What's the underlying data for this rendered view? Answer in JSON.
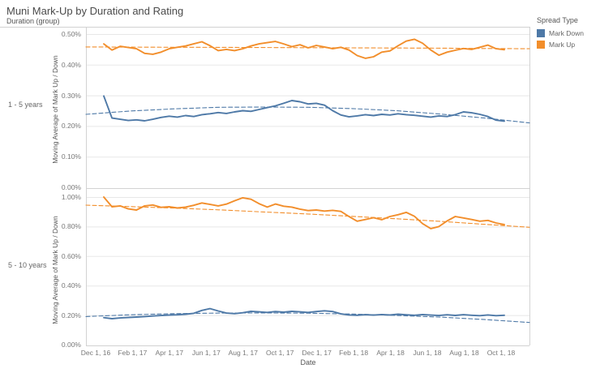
{
  "title": "Muni Mark-Up by Duration and Rating",
  "row_header": "Duration (group)",
  "legend": {
    "title": "Spread Type",
    "items": [
      {
        "label": "Mark Down",
        "color": "#4e79a7"
      },
      {
        "label": "Mark Up",
        "color": "#f28e2b"
      }
    ]
  },
  "colors": {
    "mark_down": "#4e79a7",
    "mark_up": "#f28e2b",
    "grid": "#e8e8e8",
    "border": "#d2d2d2",
    "title_text": "#4a4a4a",
    "tick_text": "#787878"
  },
  "x_axis": {
    "title": "Date",
    "ticks": [
      "Dec 1, 16",
      "Feb 1, 17",
      "Apr 1, 17",
      "Jun 1, 17",
      "Aug 1, 17",
      "Oct 1, 17",
      "Dec 1, 17",
      "Feb 1, 18",
      "Apr 1, 18",
      "Jun 1, 18",
      "Aug 1, 18",
      "Oct 1, 18"
    ]
  },
  "chart_data": [
    {
      "type": "line",
      "row_label": "1 - 5 years",
      "ylabel": "Moving Average of Mark Up / Down",
      "ylim": [
        0,
        0.5
      ],
      "y_ticks": [
        "0.50%",
        "0.40%",
        "0.30%",
        "0.20%",
        "0.10%",
        "0.00%"
      ],
      "x_range": [
        "Dec 1, 16",
        "Oct 1, 18"
      ],
      "grid": true,
      "legend_position": "right",
      "units": "percent",
      "series": [
        {
          "name": "Mark Up",
          "color": "#f28e2b",
          "values": [
            0.468,
            0.448,
            0.46,
            0.456,
            0.452,
            0.437,
            0.434,
            0.441,
            0.452,
            0.457,
            0.461,
            0.468,
            0.475,
            0.462,
            0.446,
            0.45,
            0.446,
            0.452,
            0.461,
            0.468,
            0.472,
            0.476,
            0.468,
            0.459,
            0.465,
            0.455,
            0.463,
            0.458,
            0.452,
            0.457,
            0.448,
            0.43,
            0.421,
            0.426,
            0.441,
            0.445,
            0.462,
            0.477,
            0.483,
            0.47,
            0.448,
            0.431,
            0.441,
            0.447,
            0.453,
            0.45,
            0.457,
            0.464,
            0.452,
            0.449
          ]
        },
        {
          "name": "Mark Down",
          "color": "#4e79a7",
          "values": [
            0.298,
            0.226,
            0.222,
            0.218,
            0.22,
            0.217,
            0.222,
            0.228,
            0.232,
            0.229,
            0.234,
            0.231,
            0.237,
            0.24,
            0.244,
            0.241,
            0.246,
            0.25,
            0.248,
            0.254,
            0.26,
            0.266,
            0.274,
            0.283,
            0.279,
            0.272,
            0.274,
            0.268,
            0.25,
            0.236,
            0.23,
            0.233,
            0.237,
            0.234,
            0.238,
            0.236,
            0.24,
            0.237,
            0.235,
            0.232,
            0.229,
            0.233,
            0.231,
            0.237,
            0.246,
            0.243,
            0.238,
            0.231,
            0.219,
            0.216
          ]
        }
      ],
      "trend_lines": [
        {
          "name": "Mark Up trend",
          "color": "#f28e2b",
          "style": "dashed",
          "values": [
            0.458,
            0.4575,
            0.457,
            0.4565,
            0.456,
            0.4555,
            0.455,
            0.4545,
            0.454,
            0.453,
            0.452
          ]
        },
        {
          "name": "Mark Down trend",
          "color": "#4e79a7",
          "style": "dashed",
          "values": [
            0.238,
            0.249,
            0.256,
            0.261,
            0.262,
            0.261,
            0.257,
            0.25,
            0.239,
            0.226,
            0.21
          ]
        }
      ]
    },
    {
      "type": "line",
      "row_label": "5 - 10 years",
      "ylabel": "Moving Average of Mark Up / Down",
      "ylim": [
        0,
        1.0
      ],
      "y_ticks": [
        "1.00%",
        "0.80%",
        "0.60%",
        "0.40%",
        "0.20%",
        "0.00%"
      ],
      "x_range": [
        "Dec 1, 16",
        "Oct 1, 18"
      ],
      "grid": true,
      "legend_position": "right",
      "units": "percent",
      "series": [
        {
          "name": "Mark Up",
          "color": "#f28e2b",
          "values": [
            1.0,
            0.934,
            0.94,
            0.92,
            0.912,
            0.94,
            0.946,
            0.93,
            0.934,
            0.926,
            0.932,
            0.944,
            0.96,
            0.95,
            0.94,
            0.952,
            0.975,
            0.995,
            0.985,
            0.955,
            0.932,
            0.953,
            0.938,
            0.932,
            0.918,
            0.908,
            0.912,
            0.905,
            0.91,
            0.903,
            0.868,
            0.836,
            0.848,
            0.86,
            0.846,
            0.868,
            0.88,
            0.896,
            0.87,
            0.82,
            0.786,
            0.8,
            0.838,
            0.868,
            0.858,
            0.848,
            0.836,
            0.842,
            0.824,
            0.814
          ]
        },
        {
          "name": "Mark Down",
          "color": "#4e79a7",
          "values": [
            0.183,
            0.176,
            0.181,
            0.184,
            0.187,
            0.19,
            0.194,
            0.197,
            0.2,
            0.202,
            0.206,
            0.212,
            0.232,
            0.244,
            0.228,
            0.214,
            0.21,
            0.216,
            0.226,
            0.222,
            0.218,
            0.224,
            0.22,
            0.226,
            0.222,
            0.218,
            0.224,
            0.229,
            0.224,
            0.208,
            0.201,
            0.199,
            0.203,
            0.2,
            0.204,
            0.201,
            0.206,
            0.202,
            0.199,
            0.204,
            0.2,
            0.197,
            0.202,
            0.198,
            0.203,
            0.199,
            0.196,
            0.201,
            0.196,
            0.199
          ]
        }
      ],
      "trend_lines": [
        {
          "name": "Mark Up trend",
          "color": "#f28e2b",
          "style": "dashed",
          "values": [
            0.945,
            0.935,
            0.925,
            0.913,
            0.899,
            0.885,
            0.869,
            0.853,
            0.835,
            0.815,
            0.795
          ]
        },
        {
          "name": "Mark Down trend",
          "color": "#4e79a7",
          "style": "dashed",
          "values": [
            0.19,
            0.202,
            0.21,
            0.214,
            0.215,
            0.213,
            0.207,
            0.198,
            0.186,
            0.17,
            0.15
          ]
        }
      ]
    }
  ]
}
